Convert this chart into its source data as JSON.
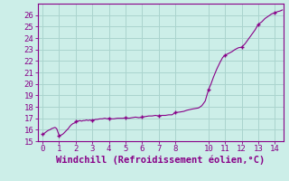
{
  "title": "",
  "xlabel": "Windchill (Refroidissement éolien,°C)",
  "ylabel": "",
  "xlim": [
    -0.3,
    14.5
  ],
  "ylim": [
    15,
    27
  ],
  "yticks": [
    15,
    16,
    17,
    18,
    19,
    20,
    21,
    22,
    23,
    24,
    25,
    26
  ],
  "xticks": [
    0,
    1,
    2,
    3,
    4,
    5,
    6,
    7,
    8,
    10,
    11,
    12,
    13,
    14
  ],
  "bg_color": "#cceee8",
  "grid_color": "#aad4ce",
  "line_color": "#880088",
  "marker_color": "#880088",
  "x": [
    0.0,
    0.08,
    0.16,
    0.25,
    0.35,
    0.45,
    0.55,
    0.65,
    0.75,
    0.85,
    1.0,
    1.08,
    1.15,
    1.25,
    1.35,
    1.45,
    1.55,
    1.65,
    1.75,
    1.85,
    1.95,
    2.0,
    2.08,
    2.15,
    2.25,
    2.35,
    2.45,
    2.55,
    2.65,
    2.75,
    2.85,
    2.95,
    3.0,
    3.1,
    3.2,
    3.3,
    3.45,
    3.6,
    3.75,
    3.9,
    4.0,
    4.15,
    4.3,
    4.5,
    4.7,
    4.85,
    5.0,
    5.2,
    5.4,
    5.6,
    5.8,
    6.0,
    6.2,
    6.4,
    6.6,
    6.8,
    7.0,
    7.2,
    7.4,
    7.6,
    7.8,
    8.0,
    8.15,
    8.3,
    8.5,
    8.7,
    8.85,
    9.0,
    9.2,
    9.4,
    9.6,
    9.8,
    10.0,
    10.15,
    10.3,
    10.5,
    10.7,
    10.85,
    11.0,
    11.2,
    11.4,
    11.6,
    11.8,
    12.0,
    12.2,
    12.4,
    12.6,
    12.8,
    13.0,
    13.2,
    13.4,
    13.6,
    13.8,
    14.0,
    14.15,
    14.3,
    14.45
  ],
  "y": [
    15.6,
    15.65,
    15.75,
    15.85,
    15.95,
    16.0,
    16.1,
    16.15,
    16.2,
    16.1,
    15.5,
    15.52,
    15.55,
    15.65,
    15.8,
    15.95,
    16.1,
    16.3,
    16.45,
    16.55,
    16.6,
    16.7,
    16.75,
    16.75,
    16.8,
    16.75,
    16.8,
    16.8,
    16.85,
    16.8,
    16.85,
    16.8,
    16.85,
    16.85,
    16.9,
    16.9,
    16.95,
    16.95,
    17.0,
    16.95,
    17.0,
    16.95,
    16.95,
    17.0,
    17.0,
    17.0,
    17.05,
    17.0,
    17.05,
    17.1,
    17.05,
    17.1,
    17.15,
    17.2,
    17.2,
    17.25,
    17.2,
    17.25,
    17.25,
    17.3,
    17.3,
    17.5,
    17.52,
    17.55,
    17.6,
    17.7,
    17.75,
    17.8,
    17.85,
    17.9,
    18.1,
    18.5,
    19.5,
    20.0,
    20.6,
    21.3,
    21.9,
    22.3,
    22.5,
    22.65,
    22.8,
    23.0,
    23.15,
    23.2,
    23.5,
    23.9,
    24.3,
    24.7,
    25.2,
    25.4,
    25.7,
    25.9,
    26.1,
    26.2,
    26.3,
    26.35,
    26.45
  ],
  "marker_x": [
    0,
    1,
    2,
    3,
    4,
    5,
    6,
    7,
    8,
    10,
    11,
    12,
    13,
    14
  ],
  "marker_y": [
    15.6,
    15.5,
    16.7,
    16.85,
    17.0,
    17.05,
    17.1,
    17.2,
    17.5,
    19.5,
    22.5,
    23.2,
    25.2,
    26.2
  ],
  "xlabel_fontsize": 7.5,
  "tick_fontsize": 6.5
}
